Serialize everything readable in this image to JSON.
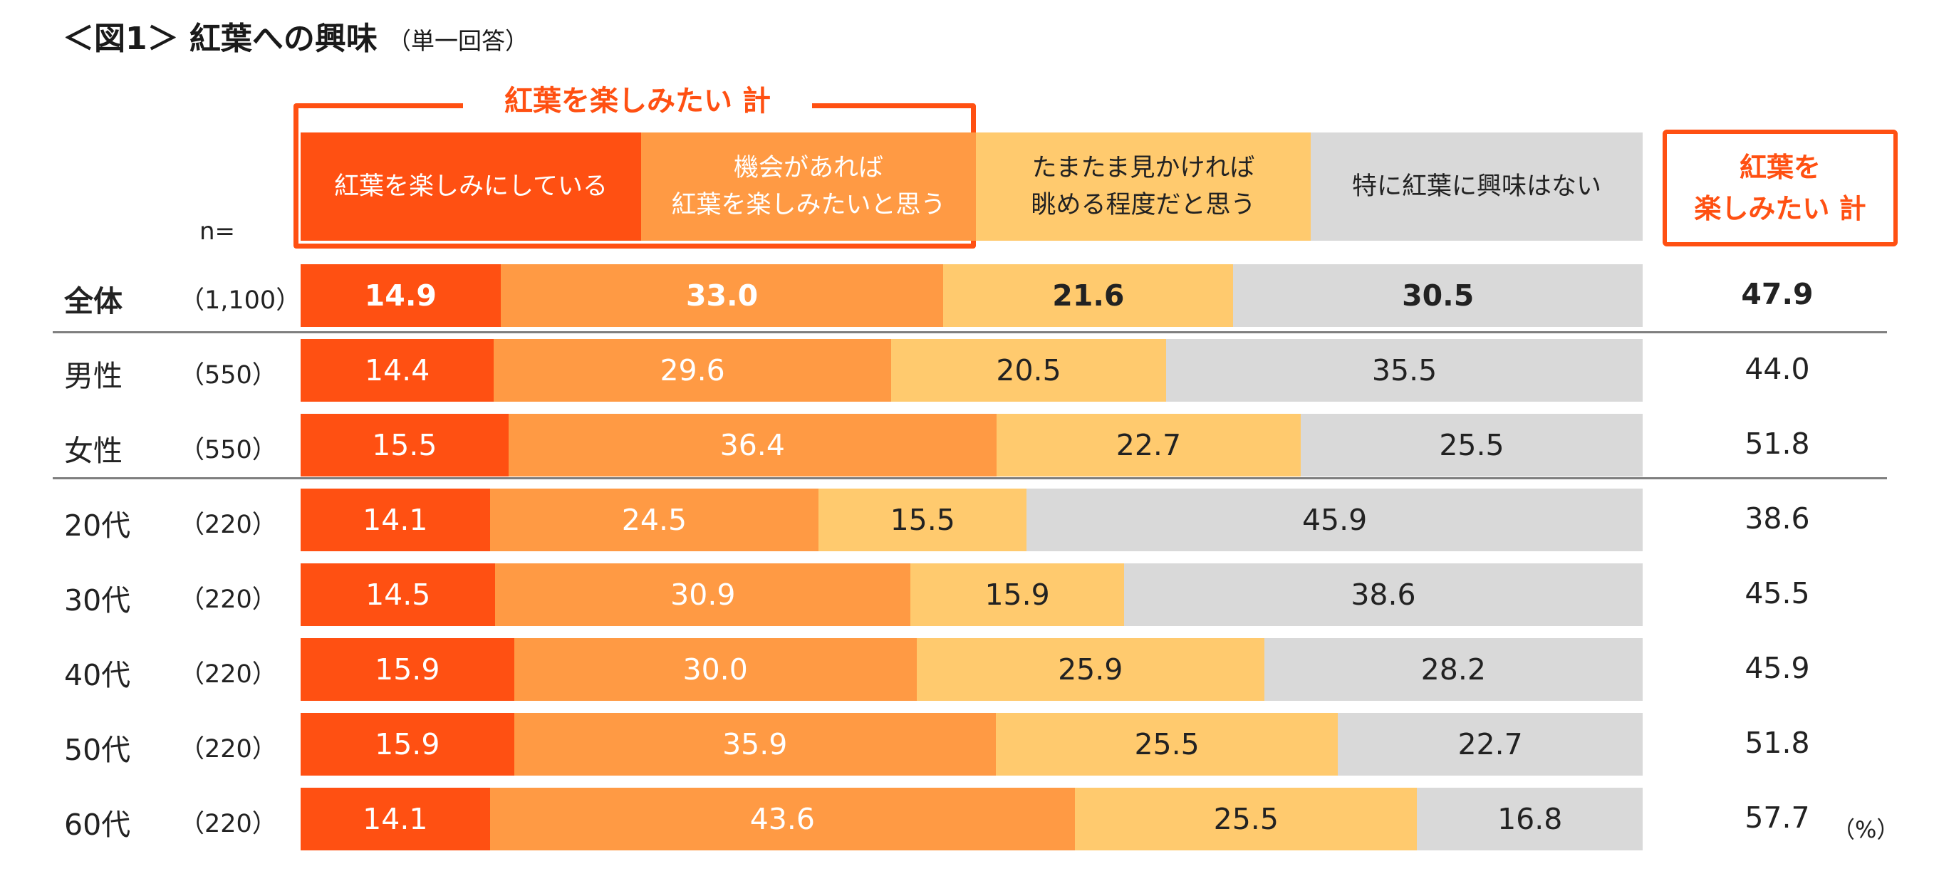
{
  "title": {
    "main": "＜図1＞ 紅葉への興味",
    "sub": "（単一回答）"
  },
  "group_label": "紅葉を楽しみたい 計",
  "headers": [
    "紅葉を楽しみにしている",
    "機会があれば\n紅葉を楽しみたいと思う",
    "たまたま見かければ\n眺める程度だと思う",
    "特に紅葉に興味はない"
  ],
  "total_header": "紅葉を\n楽しみたい 計",
  "n_label": "n=",
  "unit": "（%）",
  "colors": {
    "segments": [
      "#FF5012",
      "#FF9A44",
      "#FFCA6E",
      "#D9D9D9"
    ],
    "segment_text": [
      "#ffffff",
      "#ffffff",
      "#222222",
      "#222222"
    ],
    "accent": "#FF5012"
  },
  "chart_data": {
    "type": "bar",
    "stacked": true,
    "orientation": "horizontal",
    "title": "＜図1＞ 紅葉への興味",
    "categories": [
      "全体",
      "男性",
      "女性",
      "20代",
      "30代",
      "40代",
      "50代",
      "60代"
    ],
    "n": [
      "（1,100）",
      "（550）",
      "（550）",
      "（220）",
      "（220）",
      "（220）",
      "（220）",
      "（220）"
    ],
    "series": [
      {
        "name": "紅葉を楽しみにしている",
        "values": [
          14.9,
          14.4,
          15.5,
          14.1,
          14.5,
          15.9,
          15.9,
          14.1
        ]
      },
      {
        "name": "機会があれば紅葉を楽しみたいと思う",
        "values": [
          33.0,
          29.6,
          36.4,
          24.5,
          30.9,
          30.0,
          35.9,
          43.6
        ]
      },
      {
        "name": "たまたま見かければ眺める程度だと思う",
        "values": [
          21.6,
          20.5,
          22.7,
          15.5,
          15.9,
          25.9,
          25.5,
          25.5
        ]
      },
      {
        "name": "特に紅葉に興味はない",
        "values": [
          30.5,
          35.5,
          25.5,
          45.9,
          38.6,
          28.2,
          22.7,
          16.8
        ]
      }
    ],
    "totals": {
      "name": "紅葉を楽しみたい 計",
      "values": [
        "47.9",
        "44.0",
        "51.8",
        "38.6",
        "45.5",
        "45.9",
        "51.8",
        "57.7"
      ]
    },
    "xlim": [
      0,
      100
    ]
  }
}
